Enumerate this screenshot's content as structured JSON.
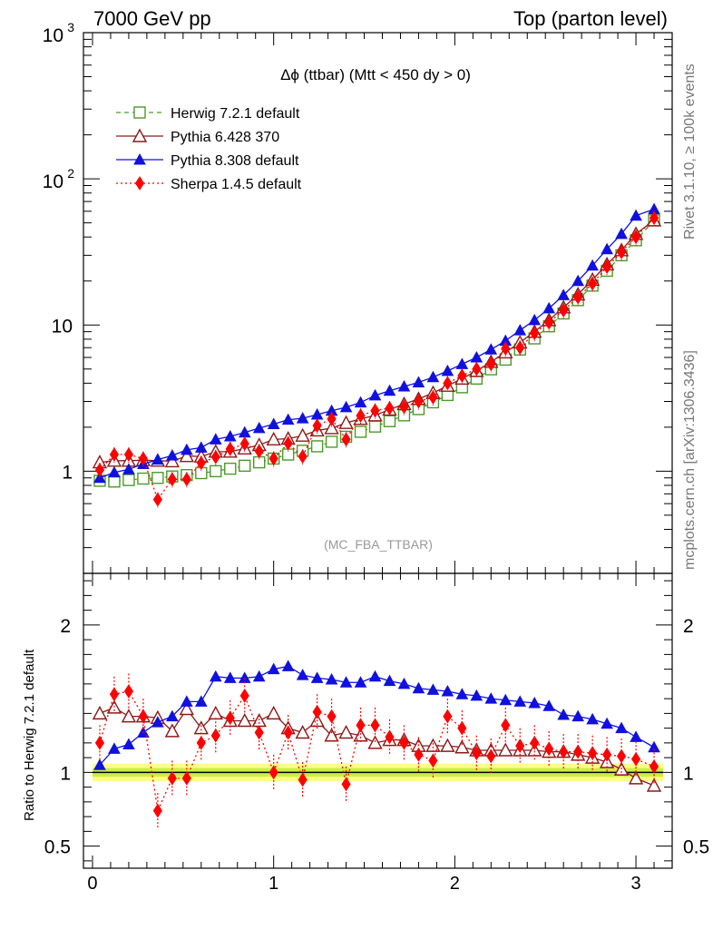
{
  "header": {
    "left": "7000 GeV pp",
    "right": "Top (parton level)"
  },
  "side_text": {
    "rivet": "Rivet 3.1.10, ≥ 100k events",
    "mcplots": "mcplots.cern.ch [arXiv:1306.3436]"
  },
  "chart_data": [
    {
      "type": "line",
      "title": "Δϕ (ttbar) (Mtt < 450 dy > 0)",
      "analysis": "(MC_FBA_TTBAR)",
      "yscale": "log",
      "xlim": [
        -0.05,
        3.2
      ],
      "ylim": [
        0.2,
        1000
      ],
      "x_ticks": [
        "0",
        "1",
        "2",
        "3"
      ],
      "y_ticks": [
        "1",
        "10",
        "10²",
        "10³"
      ],
      "legend_position": "top-left",
      "x": [
        0.04,
        0.12,
        0.2,
        0.28,
        0.36,
        0.44,
        0.52,
        0.6,
        0.68,
        0.76,
        0.84,
        0.92,
        1.0,
        1.08,
        1.16,
        1.24,
        1.32,
        1.4,
        1.48,
        1.56,
        1.64,
        1.72,
        1.8,
        1.88,
        1.96,
        2.04,
        2.12,
        2.2,
        2.28,
        2.36,
        2.44,
        2.52,
        2.6,
        2.68,
        2.76,
        2.84,
        2.92,
        3.0,
        3.1
      ],
      "series": [
        {
          "name": "Herwig 7.2.1 default",
          "color": "#4c9a2a",
          "marker": "open-square",
          "dash": "5,4",
          "values": [
            0.86,
            0.85,
            0.87,
            0.89,
            0.9,
            0.92,
            0.94,
            0.97,
            1.0,
            1.04,
            1.09,
            1.15,
            1.22,
            1.3,
            1.38,
            1.48,
            1.59,
            1.72,
            1.86,
            2.02,
            2.2,
            2.41,
            2.66,
            2.96,
            3.32,
            3.75,
            4.3,
            4.98,
            5.8,
            6.8,
            8.1,
            9.8,
            12.0,
            14.8,
            18.6,
            23.5,
            30.0,
            38.0,
            52.0
          ]
        },
        {
          "name": "Pythia 6.428 370",
          "color": "#8b1a1a",
          "marker": "open-triangle",
          "dash": "",
          "values": [
            1.15,
            1.18,
            1.18,
            1.19,
            1.18,
            1.17,
            1.27,
            1.26,
            1.36,
            1.36,
            1.43,
            1.51,
            1.65,
            1.67,
            1.75,
            1.9,
            1.97,
            2.14,
            2.28,
            2.41,
            2.64,
            2.88,
            3.12,
            3.43,
            3.84,
            4.3,
            4.85,
            5.6,
            6.5,
            7.6,
            9.0,
            10.8,
            13.2,
            16.2,
            20.4,
            26.0,
            32.5,
            42.0,
            52.0
          ]
        },
        {
          "name": "Pythia 8.308 default",
          "color": "#1010e0",
          "marker": "filled-triangle",
          "dash": "",
          "values": [
            0.9,
            0.98,
            1.03,
            1.12,
            1.2,
            1.28,
            1.4,
            1.45,
            1.65,
            1.73,
            1.84,
            1.97,
            2.1,
            2.25,
            2.3,
            2.44,
            2.59,
            2.74,
            2.95,
            3.3,
            3.55,
            3.8,
            4.05,
            4.4,
            4.85,
            5.4,
            6.0,
            6.8,
            7.8,
            9.2,
            10.8,
            13.0,
            16.0,
            20.0,
            25.5,
            33.0,
            42.0,
            56.0,
            62.0
          ]
        },
        {
          "name": "Sherpa 1.4.5 default",
          "color": "#ff0000",
          "marker": "filled-diamond",
          "dash": "2,3",
          "values": [
            1.02,
            1.3,
            1.3,
            1.22,
            0.64,
            0.88,
            0.88,
            1.14,
            1.25,
            1.42,
            1.54,
            1.37,
            1.22,
            1.55,
            1.26,
            2.05,
            2.28,
            1.65,
            2.4,
            2.6,
            2.7,
            2.75,
            3.0,
            3.2,
            4.0,
            4.5,
            5.0,
            5.4,
            6.9,
            7.0,
            8.8,
            10.4,
            12.6,
            15.5,
            19.2,
            25.0,
            31.5,
            40.0,
            54.0
          ]
        }
      ]
    },
    {
      "type": "line",
      "ylabel": "Ratio to Herwig 7.2.1 default",
      "xlim": [
        -0.05,
        3.2
      ],
      "ylim": [
        0.35,
        2.35
      ],
      "x_ticks": [
        "0",
        "1",
        "2",
        "3"
      ],
      "y_ticks": [
        "0.5",
        "1",
        "2"
      ],
      "band": {
        "inner_half_width": 0.03,
        "outer_half_width": 0.06,
        "inner_color": "#ccee44",
        "outer_color": "#ffff88"
      },
      "x": [
        0.04,
        0.12,
        0.2,
        0.28,
        0.36,
        0.44,
        0.52,
        0.6,
        0.68,
        0.76,
        0.84,
        0.92,
        1.0,
        1.08,
        1.16,
        1.24,
        1.32,
        1.4,
        1.48,
        1.56,
        1.64,
        1.72,
        1.8,
        1.88,
        1.96,
        2.04,
        2.12,
        2.2,
        2.28,
        2.36,
        2.44,
        2.52,
        2.6,
        2.68,
        2.76,
        2.84,
        2.92,
        3.0,
        3.1
      ],
      "series": [
        {
          "name": "Pythia 6.428 370",
          "color": "#8b1a1a",
          "marker": "open-triangle",
          "dash": "",
          "values": [
            1.4,
            1.44,
            1.38,
            1.38,
            1.37,
            1.28,
            1.43,
            1.3,
            1.4,
            1.35,
            1.35,
            1.35,
            1.4,
            1.3,
            1.27,
            1.35,
            1.25,
            1.27,
            1.25,
            1.2,
            1.22,
            1.22,
            1.18,
            1.18,
            1.18,
            1.17,
            1.15,
            1.15,
            1.15,
            1.15,
            1.15,
            1.14,
            1.14,
            1.12,
            1.1,
            1.07,
            1.02,
            0.96,
            0.91
          ]
        },
        {
          "name": "Pythia 8.308 default",
          "color": "#1010e0",
          "marker": "filled-triangle",
          "dash": "",
          "values": [
            1.05,
            1.16,
            1.19,
            1.27,
            1.34,
            1.38,
            1.48,
            1.48,
            1.65,
            1.64,
            1.64,
            1.65,
            1.7,
            1.72,
            1.66,
            1.64,
            1.63,
            1.61,
            1.61,
            1.65,
            1.62,
            1.6,
            1.57,
            1.56,
            1.55,
            1.53,
            1.52,
            1.5,
            1.49,
            1.48,
            1.47,
            1.45,
            1.39,
            1.38,
            1.36,
            1.33,
            1.3,
            1.24,
            1.17
          ]
        },
        {
          "name": "Sherpa 1.4.5 default",
          "color": "#ff0000",
          "marker": "filled-diamond",
          "dash": "2,3",
          "values": [
            1.2,
            1.53,
            1.55,
            1.38,
            0.74,
            0.96,
            0.96,
            1.2,
            1.25,
            1.37,
            1.52,
            1.27,
            1.0,
            1.27,
            0.95,
            1.41,
            1.38,
            0.92,
            1.32,
            1.32,
            1.24,
            1.2,
            1.12,
            1.08,
            1.38,
            1.3,
            1.13,
            1.11,
            1.32,
            1.18,
            1.2,
            1.16,
            1.14,
            1.14,
            1.13,
            1.12,
            1.11,
            1.09,
            1.04
          ]
        }
      ]
    }
  ]
}
